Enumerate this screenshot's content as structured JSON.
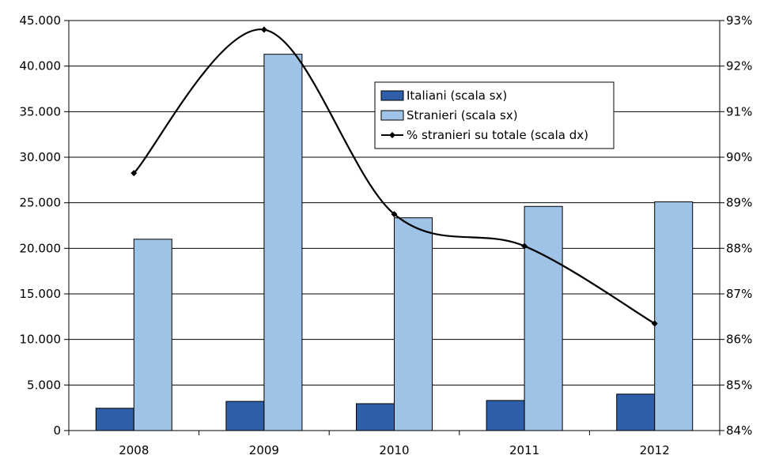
{
  "chart_data": {
    "type": "bar",
    "categories": [
      "2008",
      "2009",
      "2010",
      "2011",
      "2012"
    ],
    "series": [
      {
        "name": "Italiani (scala sx)",
        "kind": "bar",
        "axis": "left",
        "color": "#2e5fa8",
        "values": [
          2450,
          3200,
          2950,
          3300,
          4000
        ]
      },
      {
        "name": "Stranieri (scala sx)",
        "kind": "bar",
        "axis": "left",
        "color": "#9fc3e6",
        "values": [
          21000,
          41300,
          23350,
          24600,
          25100
        ]
      },
      {
        "name": "% stranieri su totale (scala dx)",
        "kind": "line",
        "axis": "right",
        "color": "#000000",
        "values": [
          89.65,
          92.8,
          88.75,
          88.05,
          86.35
        ]
      }
    ],
    "y_left": {
      "ylim": [
        0,
        45000
      ],
      "ticks": [
        0,
        5000,
        10000,
        15000,
        20000,
        25000,
        30000,
        35000,
        40000,
        45000
      ],
      "tick_labels": [
        "0",
        "5.000",
        "10.000",
        "15.000",
        "20.000",
        "25.000",
        "30.000",
        "35.000",
        "40.000",
        "45.000"
      ]
    },
    "y_right": {
      "ylim": [
        84,
        93
      ],
      "ticks": [
        84,
        85,
        86,
        87,
        88,
        89,
        90,
        91,
        92,
        93
      ],
      "tick_labels": [
        "84%",
        "85%",
        "86%",
        "87%",
        "88%",
        "89%",
        "90%",
        "91%",
        "92%",
        "93%"
      ]
    },
    "grid": true,
    "legend_position": "upper-center",
    "title": "",
    "xlabel": "",
    "ylabel": ""
  }
}
